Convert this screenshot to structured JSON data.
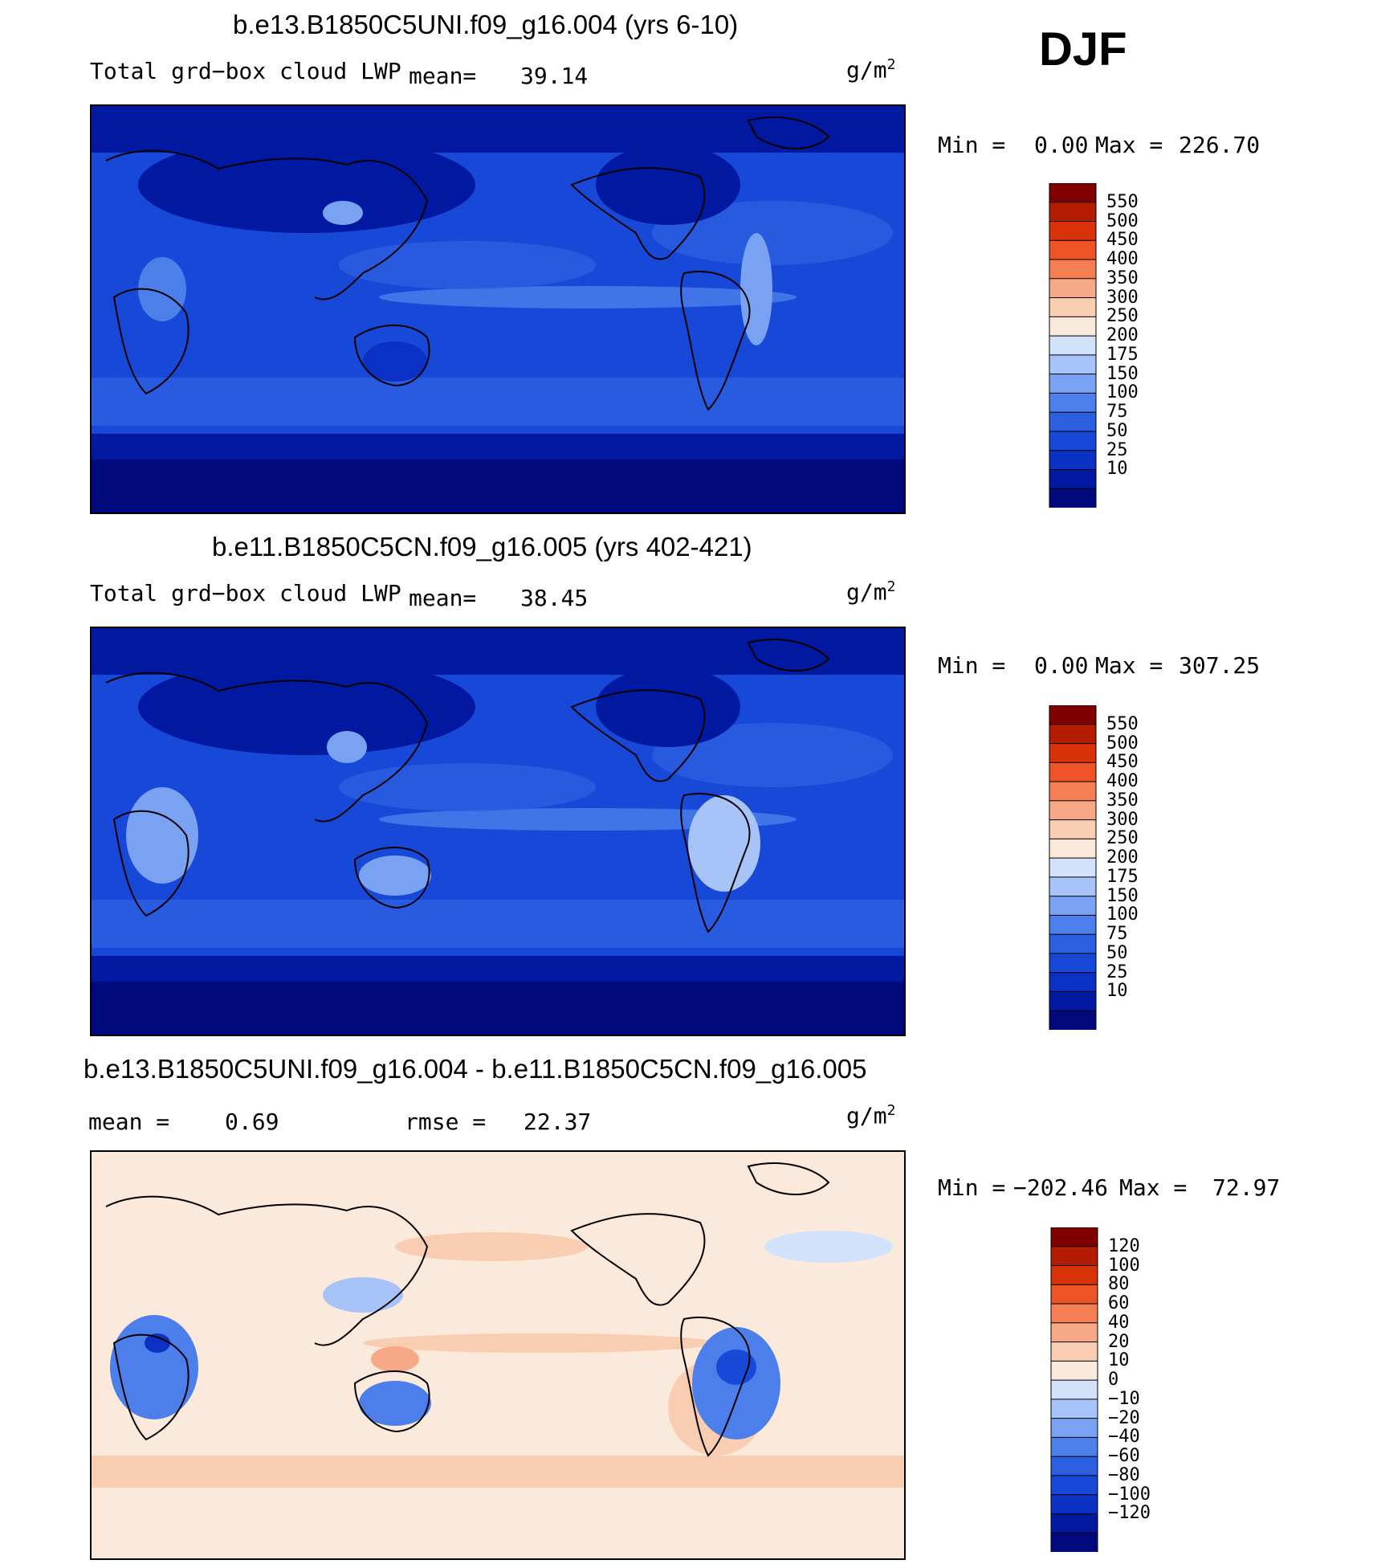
{
  "season": "DJF",
  "panels": [
    {
      "title": "b.e13.B1850C5UNI.f09_g16.004 (yrs 6-10)",
      "variable": "Total grd−box cloud LWP",
      "mean_label": "mean=",
      "mean_value": "39.14",
      "units": "g/m",
      "units_exp": "2",
      "min_label": "Min =",
      "min_value": "0.00",
      "max_label": "Max =",
      "max_value": "226.70"
    },
    {
      "title": "b.e11.B1850C5CN.f09_g16.005 (yrs 402-421)",
      "variable": "Total grd−box cloud LWP",
      "mean_label": "mean=",
      "mean_value": "38.45",
      "units": "g/m",
      "units_exp": "2",
      "min_label": "Min =",
      "min_value": "0.00",
      "max_label": "Max =",
      "max_value": "307.25"
    },
    {
      "title": "b.e13.B1850C5UNI.f09_g16.004 - b.e11.B1850C5CN.f09_g16.005",
      "mean_label": "mean =",
      "mean_value": "0.69",
      "rmse_label": "rmse =",
      "rmse_value": "22.37",
      "units": "g/m",
      "units_exp": "2",
      "min_label": "Min =",
      "min_value": "−202.46",
      "max_label": "Max =",
      "max_value": "72.97"
    }
  ],
  "chart_data": [
    {
      "type": "heatmap",
      "title": "b.e13.B1850C5UNI.f09_g16.004 (yrs 6-10)",
      "subtitle": "Total grd−box cloud LWP",
      "units": "g/m2",
      "mean": 39.14,
      "min": 0.0,
      "max": 226.7,
      "colorbar_levels": [
        "10",
        "25",
        "50",
        "75",
        "100",
        "150",
        "175",
        "200",
        "250",
        "300",
        "350",
        "400",
        "450",
        "500",
        "550"
      ],
      "colorbar_colors": [
        "#000a7d",
        "#0019a0",
        "#0b31c4",
        "#1748d8",
        "#2c5fe0",
        "#4c7fea",
        "#7aa2f3",
        "#a8c3f7",
        "#d2e2fb",
        "#fbe9dc",
        "#f9cdb2",
        "#f7a987",
        "#f47f55",
        "#ec5427",
        "#d93208",
        "#b51d02",
        "#800000"
      ]
    },
    {
      "type": "heatmap",
      "title": "b.e11.B1850C5CN.f09_g16.005 (yrs 402-421)",
      "subtitle": "Total grd−box cloud LWP",
      "units": "g/m2",
      "mean": 38.45,
      "min": 0.0,
      "max": 307.25,
      "colorbar_levels": [
        "10",
        "25",
        "50",
        "75",
        "100",
        "150",
        "175",
        "200",
        "250",
        "300",
        "350",
        "400",
        "450",
        "500",
        "550"
      ],
      "colorbar_colors": [
        "#000a7d",
        "#0019a0",
        "#0b31c4",
        "#1748d8",
        "#2c5fe0",
        "#4c7fea",
        "#7aa2f3",
        "#a8c3f7",
        "#d2e2fb",
        "#fbe9dc",
        "#f9cdb2",
        "#f7a987",
        "#f47f55",
        "#ec5427",
        "#d93208",
        "#b51d02",
        "#800000"
      ]
    },
    {
      "type": "heatmap",
      "title": "b.e13.B1850C5UNI.f09_g16.004 - b.e11.B1850C5CN.f09_g16.005",
      "units": "g/m2",
      "mean": 0.69,
      "rmse": 22.37,
      "min": -202.46,
      "max": 72.97,
      "colorbar_levels": [
        "−120",
        "−100",
        "−80",
        "−60",
        "−40",
        "−20",
        "−10",
        "0",
        "10",
        "20",
        "40",
        "60",
        "80",
        "100",
        "120"
      ],
      "colorbar_colors": [
        "#000a7d",
        "#0019a0",
        "#0b31c4",
        "#1748d8",
        "#2c5fe0",
        "#4c7fea",
        "#7aa2f3",
        "#a8c3f7",
        "#d2e2fb",
        "#fbe9dc",
        "#f9cdb2",
        "#f7a987",
        "#f47f55",
        "#ec5427",
        "#d93208",
        "#b51d02",
        "#800000"
      ]
    }
  ]
}
